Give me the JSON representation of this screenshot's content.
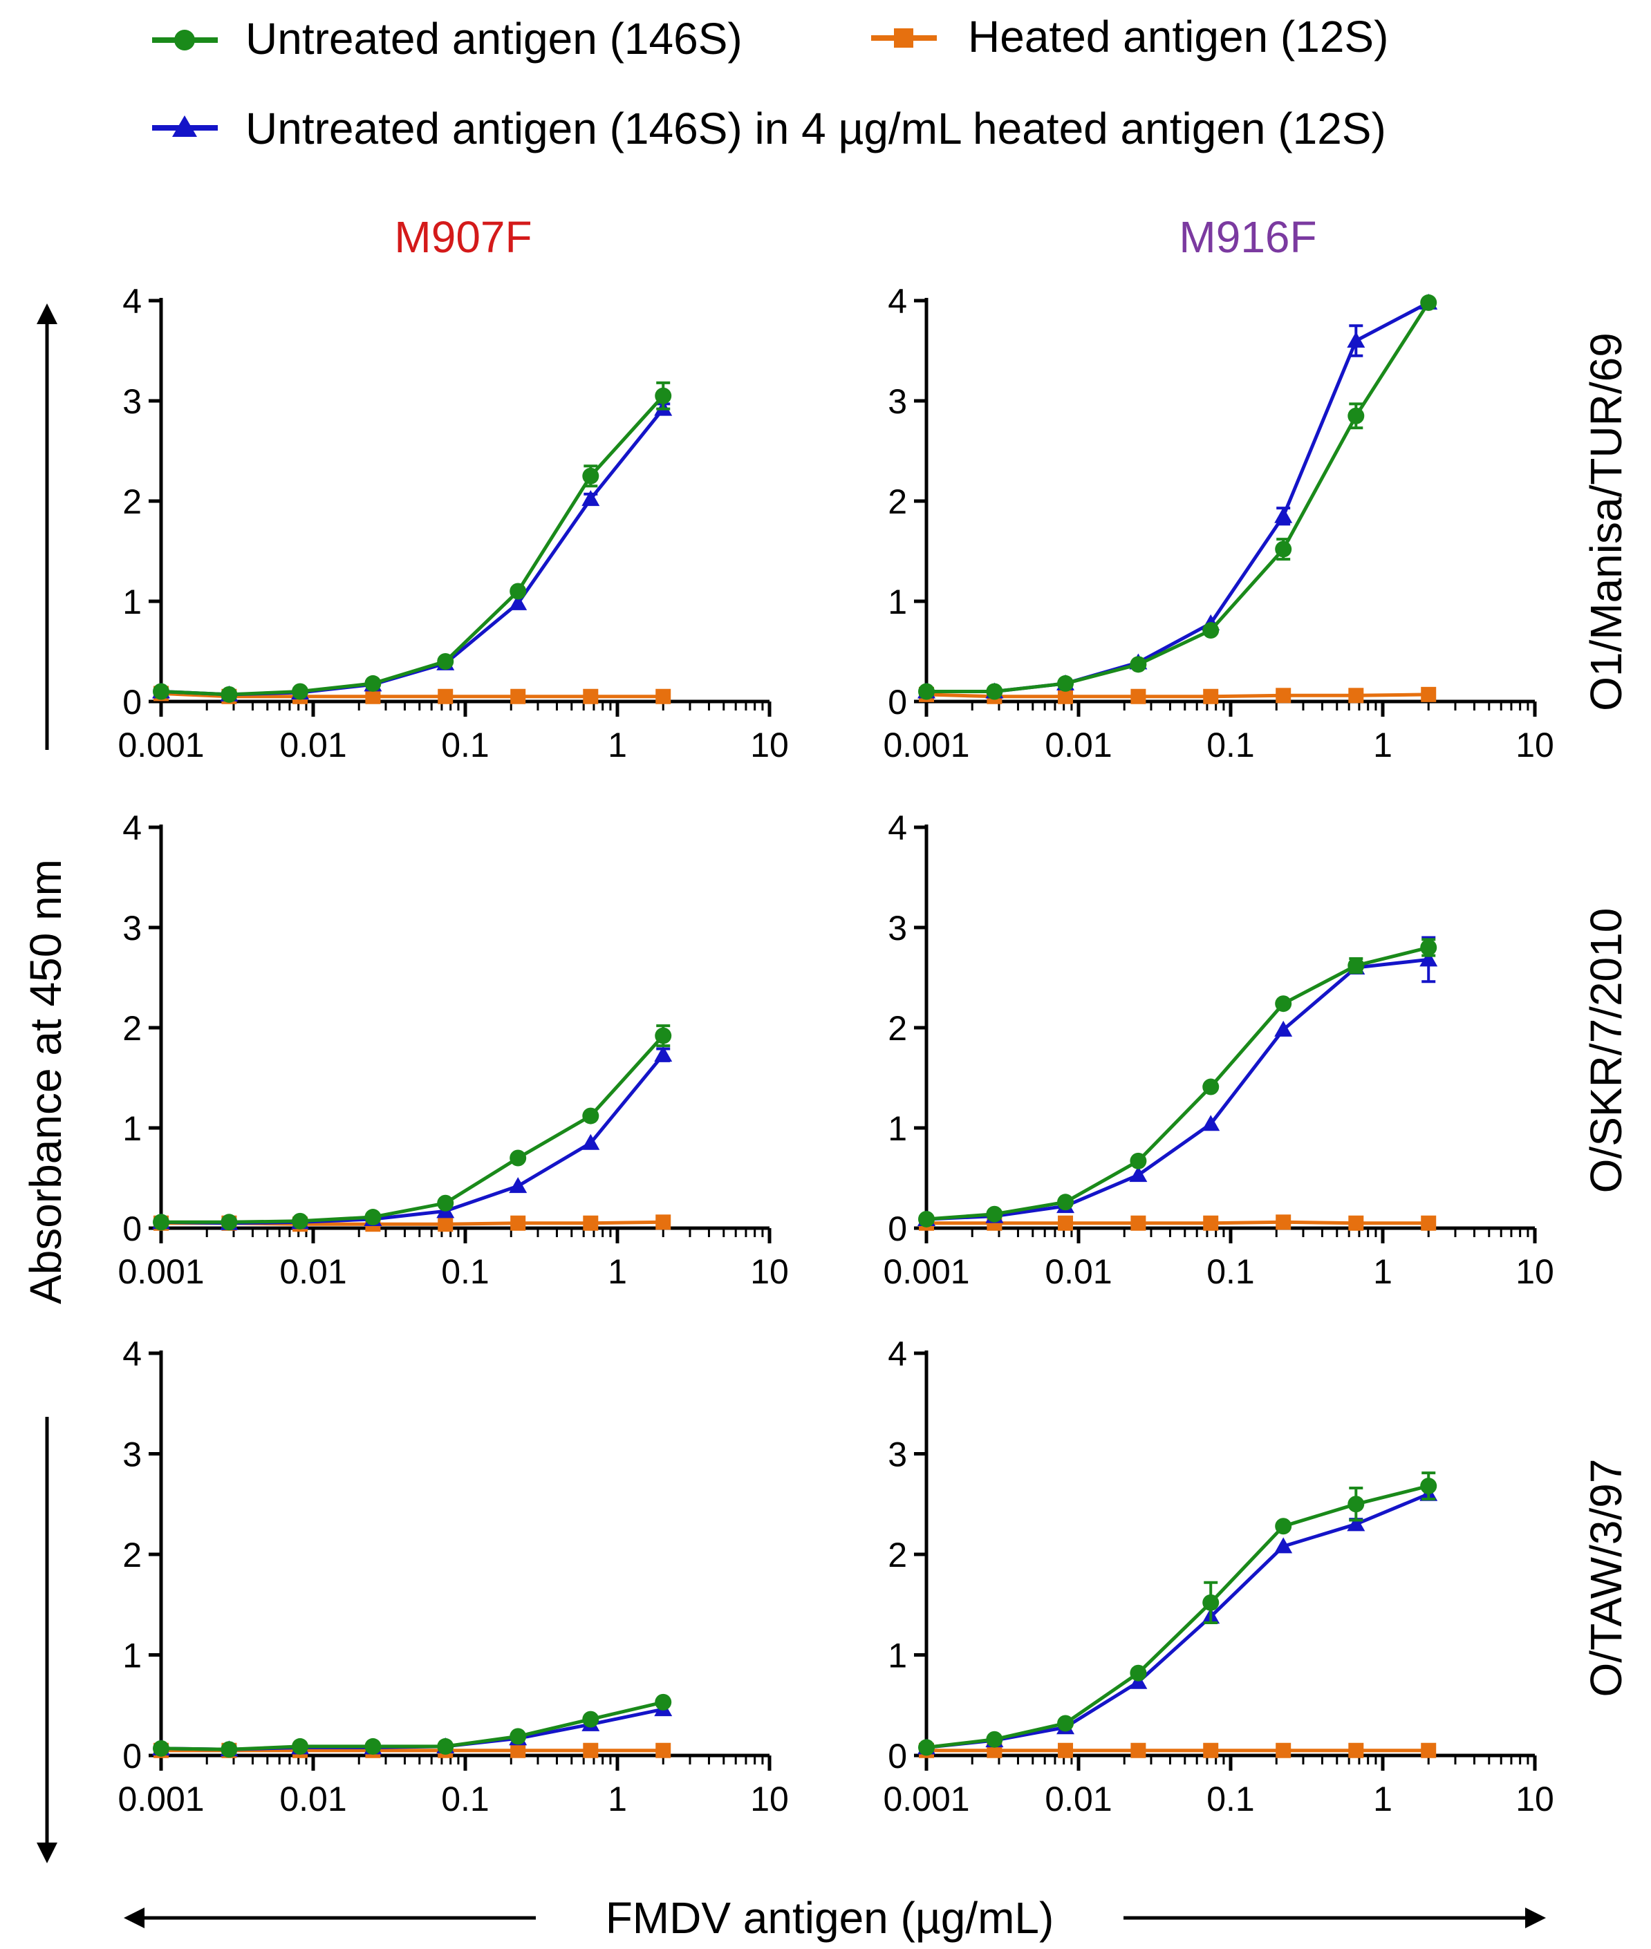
{
  "legend": {
    "series": [
      {
        "label": "Untreated antigen (146S)",
        "color": "#1a8a1a",
        "marker": "circle"
      },
      {
        "label": "Heated antigen (12S)",
        "color": "#e6700f",
        "marker": "square"
      },
      {
        "label": "Untreated antigen (146S) in 4 µg/mL heated antigen (12S)",
        "color": "#1414c8",
        "marker": "triangle"
      }
    ]
  },
  "columns": [
    {
      "label": "M907F",
      "color": "#d41a1a"
    },
    {
      "label": "M916F",
      "color": "#7b3aa0"
    }
  ],
  "rows": [
    "O1/Manisa/TUR/69",
    "O/SKR/7/2010",
    "O/TAW/3/97"
  ],
  "ylabel": "Absorbance at 450 nm",
  "xlabel": "FMDV antigen (µg/mL)",
  "chart_data": {
    "type": "line",
    "x_scale": "log",
    "x": [
      0.001,
      0.0028,
      0.0082,
      0.0247,
      0.074,
      0.222,
      0.667,
      2.0
    ],
    "xlim": [
      0.001,
      10
    ],
    "ylim": [
      0,
      4
    ],
    "x_ticks": [
      "0.001",
      "0.01",
      "0.1",
      "1",
      "10"
    ],
    "y_ticks": [
      "0",
      "1",
      "2",
      "3",
      "4"
    ],
    "panels": [
      {
        "row": "O1/Manisa/TUR/69",
        "column": "M907F",
        "series": [
          {
            "name": "Untreated antigen (146S)",
            "values": [
              0.1,
              0.07,
              0.1,
              0.18,
              0.4,
              1.1,
              2.25,
              3.05
            ],
            "errors": [
              0,
              0,
              0,
              0,
              0,
              0,
              0.1,
              0.13
            ]
          },
          {
            "name": "Heated antigen (12S)",
            "values": [
              0.08,
              0.05,
              0.05,
              0.05,
              0.05,
              0.05,
              0.05,
              0.05
            ],
            "errors": [
              0,
              0,
              0,
              0,
              0,
              0,
              0,
              0
            ]
          },
          {
            "name": "Untreated antigen (146S) in 4 µg/mL heated antigen (12S)",
            "values": [
              0.1,
              0.07,
              0.09,
              0.17,
              0.38,
              0.98,
              2.02,
              2.92
            ],
            "errors": [
              0,
              0,
              0,
              0,
              0,
              0,
              0.05,
              0.05
            ]
          }
        ]
      },
      {
        "row": "O1/Manisa/TUR/69",
        "column": "M916F",
        "series": [
          {
            "name": "Untreated antigen (146S)",
            "values": [
              0.1,
              0.1,
              0.18,
              0.37,
              0.71,
              1.52,
              2.85,
              3.98
            ],
            "errors": [
              0,
              0,
              0,
              0,
              0,
              0.1,
              0.12,
              0.03
            ]
          },
          {
            "name": "Heated antigen (12S)",
            "values": [
              0.07,
              0.05,
              0.05,
              0.05,
              0.05,
              0.06,
              0.06,
              0.07
            ],
            "errors": [
              0,
              0,
              0,
              0,
              0,
              0,
              0,
              0
            ]
          },
          {
            "name": "Untreated antigen (146S) in 4 µg/mL heated antigen (12S)",
            "values": [
              0.1,
              0.1,
              0.18,
              0.39,
              0.78,
              1.85,
              3.6,
              3.98
            ],
            "errors": [
              0,
              0,
              0,
              0,
              0,
              0.08,
              0.15,
              0.03
            ]
          }
        ]
      },
      {
        "row": "O/SKR/7/2010",
        "column": "M907F",
        "series": [
          {
            "name": "Untreated antigen (146S)",
            "values": [
              0.06,
              0.06,
              0.07,
              0.11,
              0.25,
              0.7,
              1.12,
              1.92
            ],
            "errors": [
              0,
              0,
              0,
              0,
              0,
              0,
              0,
              0.1
            ]
          },
          {
            "name": "Heated antigen (12S)",
            "values": [
              0.05,
              0.05,
              0.04,
              0.04,
              0.04,
              0.05,
              0.05,
              0.06
            ],
            "errors": [
              0,
              0,
              0,
              0,
              0,
              0,
              0,
              0
            ]
          },
          {
            "name": "Untreated antigen (146S) in 4 µg/mL heated antigen (12S)",
            "values": [
              0.06,
              0.05,
              0.06,
              0.09,
              0.17,
              0.42,
              0.85,
              1.73
            ],
            "errors": [
              0,
              0,
              0,
              0,
              0,
              0,
              0,
              0.06
            ]
          }
        ]
      },
      {
        "row": "O/SKR/7/2010",
        "column": "M916F",
        "series": [
          {
            "name": "Untreated antigen (146S)",
            "values": [
              0.09,
              0.14,
              0.26,
              0.67,
              1.41,
              2.24,
              2.62,
              2.8
            ],
            "errors": [
              0,
              0,
              0,
              0,
              0,
              0,
              0.07,
              0.08
            ]
          },
          {
            "name": "Heated antigen (12S)",
            "values": [
              0.05,
              0.05,
              0.05,
              0.05,
              0.05,
              0.06,
              0.05,
              0.05
            ],
            "errors": [
              0,
              0,
              0,
              0,
              0,
              0,
              0,
              0
            ]
          },
          {
            "name": "Untreated antigen (146S) in 4 µg/mL heated antigen (12S)",
            "values": [
              0.09,
              0.12,
              0.22,
              0.53,
              1.04,
              1.98,
              2.6,
              2.68
            ],
            "errors": [
              0,
              0,
              0,
              0,
              0,
              0,
              0.05,
              0.22
            ]
          }
        ]
      },
      {
        "row": "O/TAW/3/97",
        "column": "M907F",
        "series": [
          {
            "name": "Untreated antigen (146S)",
            "values": [
              0.07,
              0.06,
              0.09,
              0.09,
              0.09,
              0.19,
              0.36,
              0.53
            ],
            "errors": [
              0,
              0,
              0,
              0,
              0,
              0,
              0,
              0
            ]
          },
          {
            "name": "Heated antigen (12S)",
            "values": [
              0.05,
              0.05,
              0.05,
              0.05,
              0.05,
              0.05,
              0.05,
              0.05
            ],
            "errors": [
              0,
              0,
              0,
              0,
              0,
              0,
              0,
              0
            ]
          },
          {
            "name": "Untreated antigen (146S) in 4 µg/mL heated antigen (12S)",
            "values": [
              0.07,
              0.06,
              0.08,
              0.08,
              0.09,
              0.17,
              0.31,
              0.46
            ],
            "errors": [
              0,
              0,
              0,
              0,
              0,
              0,
              0,
              0
            ]
          }
        ]
      },
      {
        "row": "O/TAW/3/97",
        "column": "M916F",
        "series": [
          {
            "name": "Untreated antigen (146S)",
            "values": [
              0.08,
              0.16,
              0.32,
              0.82,
              1.52,
              2.28,
              2.5,
              2.68
            ],
            "errors": [
              0,
              0,
              0,
              0,
              0.2,
              0,
              0.16,
              0.13
            ]
          },
          {
            "name": "Heated antigen (12S)",
            "values": [
              0.05,
              0.05,
              0.05,
              0.05,
              0.05,
              0.05,
              0.05,
              0.05
            ],
            "errors": [
              0,
              0,
              0,
              0,
              0,
              0,
              0,
              0
            ]
          },
          {
            "name": "Untreated antigen (146S) in 4 µg/mL heated antigen (12S)",
            "values": [
              0.08,
              0.15,
              0.28,
              0.73,
              1.38,
              2.08,
              2.3,
              2.6
            ],
            "errors": [
              0,
              0,
              0,
              0,
              0,
              0,
              0.05,
              0.05
            ]
          }
        ]
      }
    ]
  }
}
